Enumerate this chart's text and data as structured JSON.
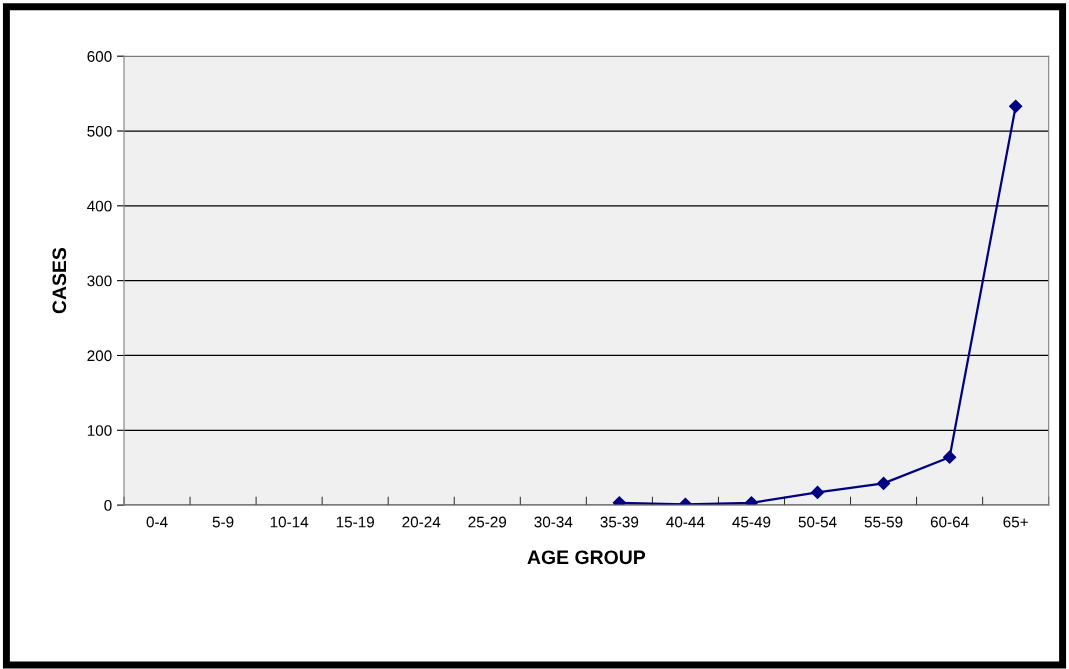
{
  "chart_data": {
    "type": "line",
    "xlabel": "AGE GROUP",
    "ylabel": "CASES",
    "categories": [
      "0-4",
      "5-9",
      "10-14",
      "15-19",
      "20-24",
      "25-29",
      "30-34",
      "35-39",
      "40-44",
      "45-49",
      "50-54",
      "55-59",
      "60-64",
      "65+"
    ],
    "series": [
      {
        "color": "#000080",
        "values": [
          null,
          null,
          null,
          null,
          null,
          null,
          null,
          3,
          1,
          3,
          17,
          29,
          64,
          533
        ]
      }
    ],
    "ylim": [
      0,
      600
    ],
    "yticks": [
      0,
      100,
      200,
      300,
      400,
      500,
      600
    ],
    "grid": "y",
    "marker": "diamond"
  }
}
